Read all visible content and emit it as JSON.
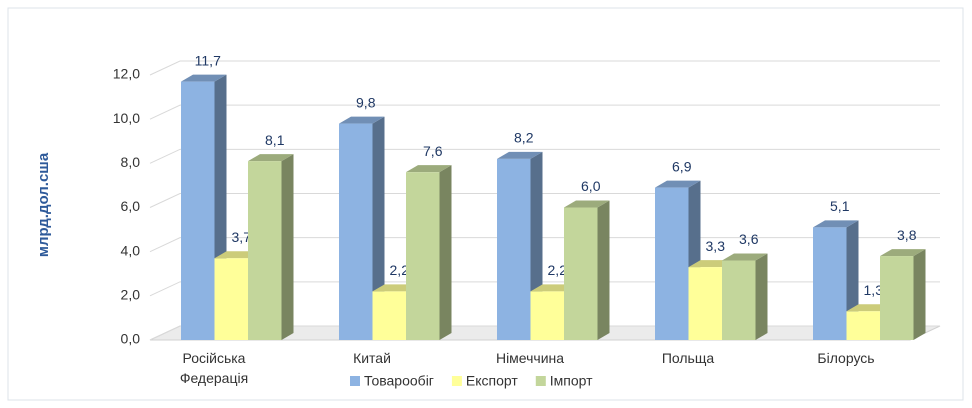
{
  "chart_data": {
    "type": "bar3d",
    "y_label": "млрд.дол.сша",
    "categories": [
      "Російська Федерація",
      "Китай",
      "Німеччина",
      "Польща",
      "Білорусь"
    ],
    "series": [
      {
        "name": "Товарообіг",
        "color": "#8db3e2",
        "values": [
          11.7,
          9.8,
          8.2,
          6.9,
          5.1
        ],
        "value_labels": [
          "11,7",
          "9,8",
          "8,2",
          "6,9",
          "5,1"
        ]
      },
      {
        "name": "Експорт",
        "color": "#ffff99",
        "values": [
          3.7,
          2.2,
          2.2,
          3.3,
          1.3
        ],
        "value_labels": [
          "3,7",
          "2,2",
          "2,2",
          "3,3",
          "1,3"
        ]
      },
      {
        "name": "Імпорт",
        "color": "#c3d69b",
        "values": [
          8.1,
          7.6,
          6.0,
          3.6,
          3.8
        ],
        "value_labels": [
          "8,1",
          "7,6",
          "6,0",
          "3,6",
          "3,8"
        ]
      }
    ],
    "ylim": [
      0,
      12
    ],
    "yticks": [
      {
        "value": 0,
        "label": "0,0"
      },
      {
        "value": 2,
        "label": "2,0"
      },
      {
        "value": 4,
        "label": "4,0"
      },
      {
        "value": 6,
        "label": "6,0"
      },
      {
        "value": 8,
        "label": "8,0"
      },
      {
        "value": 10,
        "label": "10,0"
      },
      {
        "value": 12,
        "label": "12,0"
      }
    ],
    "grid": true,
    "legend": "bottom"
  }
}
